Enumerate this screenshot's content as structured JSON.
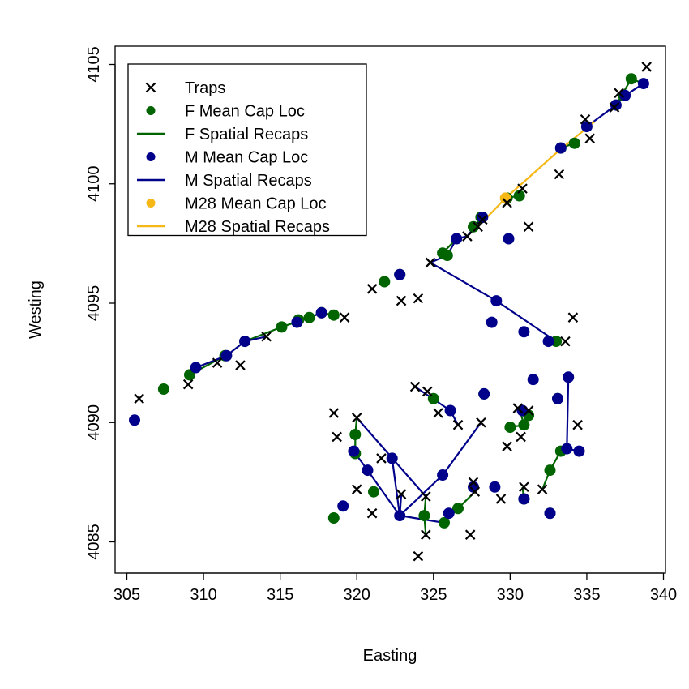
{
  "chart_data": {
    "type": "scatter",
    "title": "",
    "xlabel": "Easting",
    "ylabel": "Westing",
    "xlim": [
      304.3,
      340.2
    ],
    "ylim": [
      4083.8,
      4105.5
    ],
    "x_ticks": [
      305,
      310,
      315,
      320,
      325,
      330,
      335,
      340
    ],
    "y_ticks": [
      4085,
      4090,
      4095,
      4100,
      4105
    ],
    "x_tick_labels": [
      "305",
      "310",
      "315",
      "320",
      "325",
      "330",
      "335",
      "340"
    ],
    "y_tick_labels": [
      "4085",
      "4090",
      "4095",
      "4100",
      "4105"
    ],
    "grid": false,
    "legend_position": "top-left",
    "colors": {
      "F": "#006400",
      "M": "#00008B",
      "M28": "#F5B817",
      "traps": "#000000"
    },
    "legend": [
      {
        "label": "Traps",
        "kind": "cross",
        "color": "#000000"
      },
      {
        "label": "F Mean Cap Loc",
        "kind": "dot",
        "color": "#006400"
      },
      {
        "label": "F Spatial Recaps",
        "kind": "line",
        "color": "#006400"
      },
      {
        "label": "M Mean Cap Loc",
        "kind": "dot",
        "color": "#00008B"
      },
      {
        "label": "M Spatial Recaps",
        "kind": "line",
        "color": "#00008B"
      },
      {
        "label": "M28 Mean Cap Loc",
        "kind": "dot",
        "color": "#F5B817"
      },
      {
        "label": "M28 Spatial Recaps",
        "kind": "line",
        "color": "#F5B817"
      }
    ],
    "series": [
      {
        "name": "Traps",
        "marker": "cross",
        "points": [
          [
            305.8,
            4091.0
          ],
          [
            309.0,
            4091.6
          ],
          [
            310.9,
            4092.5
          ],
          [
            312.4,
            4092.4
          ],
          [
            314.1,
            4093.6
          ],
          [
            319.2,
            4094.4
          ],
          [
            321.0,
            4095.6
          ],
          [
            322.9,
            4095.1
          ],
          [
            324.0,
            4095.2
          ],
          [
            324.8,
            4096.7
          ],
          [
            327.2,
            4097.8
          ],
          [
            327.9,
            4098.2
          ],
          [
            328.2,
            4098.5
          ],
          [
            329.8,
            4099.2
          ],
          [
            330.8,
            4099.8
          ],
          [
            331.2,
            4098.2
          ],
          [
            333.2,
            4100.4
          ],
          [
            334.9,
            4102.7
          ],
          [
            335.2,
            4101.9
          ],
          [
            336.8,
            4103.2
          ],
          [
            337.1,
            4103.8
          ],
          [
            338.9,
            4104.9
          ],
          [
            334.1,
            4094.4
          ],
          [
            333.6,
            4093.4
          ],
          [
            318.5,
            4090.4
          ],
          [
            318.7,
            4089.4
          ],
          [
            320.0,
            4090.2
          ],
          [
            321.6,
            4088.5
          ],
          [
            323.8,
            4091.5
          ],
          [
            324.6,
            4091.3
          ],
          [
            325.3,
            4090.4
          ],
          [
            326.6,
            4089.9
          ],
          [
            328.1,
            4090.0
          ],
          [
            329.8,
            4089.0
          ],
          [
            330.5,
            4090.6
          ],
          [
            330.7,
            4089.4
          ],
          [
            331.2,
            4090.5
          ],
          [
            334.4,
            4089.9
          ],
          [
            320.0,
            4087.2
          ],
          [
            321.0,
            4086.2
          ],
          [
            322.9,
            4087.0
          ],
          [
            324.5,
            4086.9
          ],
          [
            324.5,
            4085.3
          ],
          [
            324.0,
            4084.4
          ],
          [
            327.4,
            4085.3
          ],
          [
            327.6,
            4087.5
          ],
          [
            327.7,
            4087.1
          ],
          [
            329.4,
            4086.8
          ],
          [
            330.9,
            4087.3
          ],
          [
            332.1,
            4087.2
          ]
        ]
      },
      {
        "name": "F Mean Cap Loc",
        "marker": "dot",
        "points": [
          [
            307.4,
            4091.4
          ],
          [
            309.1,
            4092.0
          ],
          [
            311.4,
            4092.8
          ],
          [
            312.7,
            4093.4
          ],
          [
            315.1,
            4094.0
          ],
          [
            316.2,
            4094.3
          ],
          [
            316.9,
            4094.4
          ],
          [
            317.7,
            4094.6
          ],
          [
            318.5,
            4094.5
          ],
          [
            321.8,
            4095.9
          ],
          [
            322.8,
            4096.2
          ],
          [
            325.6,
            4097.1
          ],
          [
            325.9,
            4097.0
          ],
          [
            327.6,
            4098.2
          ],
          [
            328.1,
            4098.6
          ],
          [
            329.8,
            4099.4
          ],
          [
            330.6,
            4099.5
          ],
          [
            333.3,
            4101.5
          ],
          [
            334.2,
            4101.7
          ],
          [
            337.4,
            4103.7
          ],
          [
            337.9,
            4104.4
          ],
          [
            333.0,
            4093.4
          ],
          [
            319.9,
            4089.5
          ],
          [
            319.9,
            4088.7
          ],
          [
            325.0,
            4091.0
          ],
          [
            328.3,
            4091.2
          ],
          [
            330.0,
            4089.8
          ],
          [
            330.9,
            4089.9
          ],
          [
            331.2,
            4090.3
          ],
          [
            333.1,
            4091.0
          ],
          [
            333.3,
            4088.8
          ],
          [
            332.6,
            4088.0
          ],
          [
            321.1,
            4087.1
          ],
          [
            324.4,
            4086.1
          ],
          [
            325.7,
            4085.8
          ],
          [
            326.6,
            4086.4
          ],
          [
            330.9,
            4086.8
          ],
          [
            332.6,
            4086.2
          ],
          [
            318.5,
            4086.0
          ]
        ]
      },
      {
        "name": "M Mean Cap Loc",
        "marker": "dot",
        "points": [
          [
            305.5,
            4090.1
          ],
          [
            309.5,
            4092.3
          ],
          [
            311.5,
            4092.8
          ],
          [
            312.7,
            4093.4
          ],
          [
            316.1,
            4094.2
          ],
          [
            317.7,
            4094.6
          ],
          [
            322.8,
            4096.2
          ],
          [
            326.5,
            4097.7
          ],
          [
            328.2,
            4098.6
          ],
          [
            329.9,
            4097.7
          ],
          [
            333.3,
            4101.5
          ],
          [
            335.0,
            4102.4
          ],
          [
            336.9,
            4103.3
          ],
          [
            337.5,
            4103.7
          ],
          [
            338.7,
            4104.2
          ],
          [
            329.1,
            4095.1
          ],
          [
            328.8,
            4094.2
          ],
          [
            330.9,
            4093.8
          ],
          [
            332.5,
            4093.4
          ],
          [
            331.5,
            4091.8
          ],
          [
            333.8,
            4091.9
          ],
          [
            326.1,
            4090.5
          ],
          [
            328.3,
            4091.2
          ],
          [
            330.8,
            4090.5
          ],
          [
            333.1,
            4091.0
          ],
          [
            319.8,
            4088.8
          ],
          [
            320.7,
            4088.0
          ],
          [
            322.3,
            4088.5
          ],
          [
            319.1,
            4086.5
          ],
          [
            322.8,
            4086.1
          ],
          [
            325.6,
            4087.8
          ],
          [
            326.0,
            4086.2
          ],
          [
            327.6,
            4087.3
          ],
          [
            329.0,
            4087.3
          ],
          [
            330.9,
            4086.8
          ],
          [
            332.6,
            4086.2
          ],
          [
            333.7,
            4088.9
          ],
          [
            334.5,
            4088.8
          ]
        ]
      },
      {
        "name": "M28 Mean Cap Loc",
        "marker": "dot",
        "points": [
          [
            329.7,
            4099.4
          ]
        ]
      }
    ],
    "recap_lines": [
      {
        "group": "F",
        "points": [
          [
            309.1,
            4092.0
          ],
          [
            311.4,
            4092.8
          ]
        ]
      },
      {
        "group": "F",
        "points": [
          [
            312.7,
            4093.4
          ],
          [
            315.1,
            4094.0
          ],
          [
            316.9,
            4094.4
          ],
          [
            317.7,
            4094.6
          ],
          [
            318.5,
            4094.5
          ]
        ]
      },
      {
        "group": "F",
        "points": [
          [
            325.6,
            4097.1
          ],
          [
            326.5,
            4097.7
          ]
        ]
      },
      {
        "group": "F",
        "points": [
          [
            327.6,
            4098.2
          ],
          [
            328.2,
            4098.6
          ]
        ]
      },
      {
        "group": "F",
        "points": [
          [
            329.7,
            4099.4
          ],
          [
            330.6,
            4099.5
          ]
        ]
      },
      {
        "group": "F",
        "points": [
          [
            333.3,
            4101.5
          ],
          [
            334.2,
            4101.7
          ]
        ]
      },
      {
        "group": "F",
        "points": [
          [
            336.9,
            4103.3
          ],
          [
            337.9,
            4104.4
          ],
          [
            338.7,
            4104.2
          ]
        ]
      },
      {
        "group": "F",
        "points": [
          [
            320.0,
            4090.2
          ],
          [
            319.9,
            4089.5
          ],
          [
            319.9,
            4088.7
          ]
        ]
      },
      {
        "group": "F",
        "points": [
          [
            330.0,
            4089.8
          ],
          [
            330.9,
            4089.9
          ],
          [
            330.6,
            4090.6
          ]
        ]
      },
      {
        "group": "F",
        "points": [
          [
            333.3,
            4088.8
          ],
          [
            332.6,
            4088.0
          ],
          [
            332.1,
            4087.2
          ]
        ]
      },
      {
        "group": "F",
        "points": [
          [
            324.5,
            4086.9
          ],
          [
            324.4,
            4086.1
          ],
          [
            324.5,
            4085.3
          ]
        ]
      },
      {
        "group": "F",
        "points": [
          [
            325.7,
            4085.8
          ],
          [
            326.6,
            4086.4
          ],
          [
            327.7,
            4087.1
          ]
        ]
      },
      {
        "group": "F",
        "points": [
          [
            330.8,
            4087.3
          ],
          [
            330.9,
            4086.8
          ]
        ]
      },
      {
        "group": "M",
        "points": [
          [
            305.5,
            4090.1
          ],
          [
            305.6,
            4090.2
          ]
        ]
      },
      {
        "group": "M",
        "points": [
          [
            309.5,
            4092.3
          ],
          [
            311.5,
            4092.8
          ],
          [
            312.7,
            4093.4
          ],
          [
            314.1,
            4093.6
          ]
        ]
      },
      {
        "group": "M",
        "points": [
          [
            316.1,
            4094.2
          ],
          [
            317.7,
            4094.6
          ]
        ]
      },
      {
        "group": "M",
        "points": [
          [
            322.8,
            4096.2
          ],
          [
            322.6,
            4096.1
          ]
        ]
      },
      {
        "group": "M",
        "points": [
          [
            325.9,
            4097.0
          ],
          [
            326.5,
            4097.7
          ],
          [
            327.2,
            4097.8
          ],
          [
            328.2,
            4098.6
          ]
        ]
      },
      {
        "group": "M",
        "points": [
          [
            335.0,
            4102.4
          ],
          [
            336.9,
            4103.3
          ],
          [
            337.5,
            4103.7
          ],
          [
            338.7,
            4104.2
          ]
        ]
      },
      {
        "group": "M",
        "points": [
          [
            324.8,
            4096.7
          ],
          [
            329.1,
            4095.1
          ],
          [
            333.0,
            4093.4
          ]
        ]
      },
      {
        "group": "M",
        "points": [
          [
            324.8,
            4096.7
          ],
          [
            325.9,
            4097.0
          ]
        ]
      },
      {
        "group": "M",
        "points": [
          [
            323.8,
            4091.5
          ],
          [
            326.1,
            4090.5
          ],
          [
            326.6,
            4089.9
          ]
        ]
      },
      {
        "group": "M",
        "points": [
          [
            330.5,
            4090.6
          ],
          [
            331.2,
            4090.3
          ]
        ]
      },
      {
        "group": "M",
        "points": [
          [
            333.8,
            4091.9
          ],
          [
            333.7,
            4088.9
          ],
          [
            333.3,
            4088.8
          ]
        ]
      },
      {
        "group": "M",
        "points": [
          [
            320.0,
            4090.2
          ],
          [
            324.5,
            4086.9
          ]
        ]
      },
      {
        "group": "M",
        "points": [
          [
            319.8,
            4088.8
          ],
          [
            320.7,
            4088.0
          ],
          [
            322.8,
            4086.1
          ],
          [
            322.3,
            4088.5
          ]
        ]
      },
      {
        "group": "M",
        "points": [
          [
            322.8,
            4086.1
          ],
          [
            325.6,
            4087.8
          ],
          [
            328.1,
            4090.0
          ]
        ]
      },
      {
        "group": "M",
        "points": [
          [
            322.8,
            4086.1
          ],
          [
            325.7,
            4085.8
          ]
        ]
      },
      {
        "group": "M",
        "points": [
          [
            322.9,
            4087.0
          ],
          [
            322.8,
            4086.1
          ]
        ]
      },
      {
        "group": "M",
        "points": [
          [
            319.1,
            4086.5
          ],
          [
            318.9,
            4086.5
          ]
        ]
      },
      {
        "group": "M",
        "points": [
          [
            326.0,
            4086.2
          ],
          [
            326.1,
            4086.3
          ]
        ]
      },
      {
        "group": "M",
        "points": [
          [
            333.7,
            4088.9
          ],
          [
            334.5,
            4088.8
          ]
        ]
      },
      {
        "group": "M28",
        "points": [
          [
            327.9,
            4098.2
          ],
          [
            329.7,
            4099.4
          ],
          [
            333.2,
            4101.4
          ],
          [
            335.5,
            4102.6
          ]
        ]
      }
    ]
  }
}
